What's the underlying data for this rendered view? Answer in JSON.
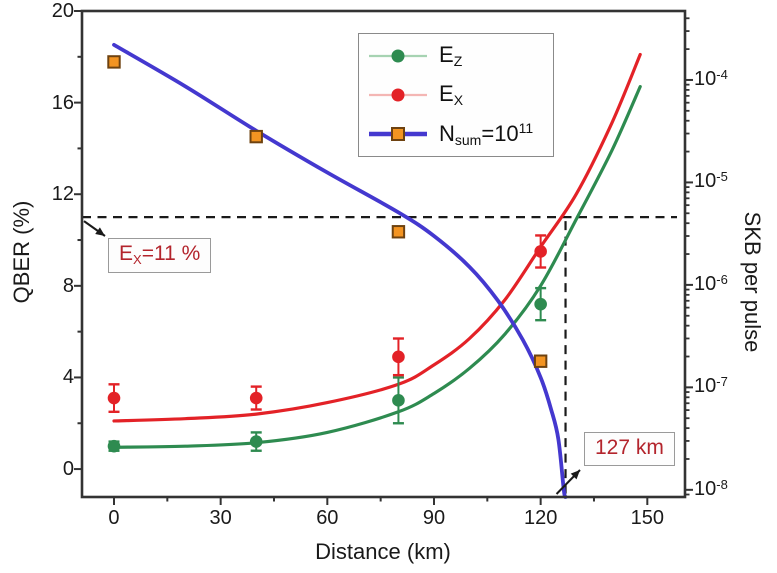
{
  "chart_data": {
    "type": "line+scatter (dual axis)",
    "title": "",
    "xlabel": "Distance (km)",
    "ylabel_left": "QBER (%)",
    "ylabel_right": "SKB per pulse",
    "xlim": [
      -9.0,
      160.6
    ],
    "ylim_left": [
      -1.22,
      20
    ],
    "ylim_right_log10": [
      -8.07,
      -3.327
    ],
    "x_ticks": [
      0,
      30,
      60,
      90,
      120,
      150
    ],
    "x_minor_ticks": [
      15,
      45,
      75,
      105,
      135
    ],
    "y_left_ticks": [
      0,
      4,
      8,
      12,
      16,
      20
    ],
    "y_left_minor_ticks": [
      2,
      6,
      10,
      14,
      18
    ],
    "y_right_ticks": [
      {
        "base": "10",
        "exp": "-4",
        "logv": -4
      },
      {
        "base": "10",
        "exp": "-5",
        "logv": -5
      },
      {
        "base": "10",
        "exp": "-6",
        "logv": -6
      },
      {
        "base": "10",
        "exp": "-7",
        "logv": -7
      },
      {
        "base": "10",
        "exp": "-8",
        "logv": -8
      }
    ],
    "grid": false,
    "legend_position": "upper center-right inside",
    "series": [
      {
        "name": "E_Z",
        "axis": "left",
        "marker": "circle",
        "color": "#2e8b50",
        "points": {
          "x": [
            0,
            40,
            80,
            120
          ],
          "y": [
            1.0,
            1.2,
            3.0,
            7.2
          ],
          "yerr": [
            0.2,
            0.4,
            1.0,
            0.7
          ]
        },
        "curve": {
          "x": [
            0,
            20,
            40,
            60,
            80,
            90,
            100,
            110,
            120,
            130,
            140,
            148
          ],
          "y": [
            0.95,
            1.0,
            1.15,
            1.6,
            2.5,
            3.3,
            4.4,
            5.9,
            8.0,
            10.9,
            13.9,
            16.7
          ]
        }
      },
      {
        "name": "E_X",
        "axis": "left",
        "marker": "circle",
        "color": "#e32227",
        "points": {
          "x": [
            0,
            40,
            80,
            120
          ],
          "y": [
            3.1,
            3.1,
            4.9,
            9.5
          ],
          "yerr": [
            0.6,
            0.5,
            0.8,
            0.7
          ]
        },
        "curve": {
          "x": [
            0,
            20,
            40,
            60,
            80,
            90,
            100,
            110,
            120,
            130,
            140,
            148
          ],
          "y": [
            2.1,
            2.2,
            2.4,
            2.9,
            3.7,
            4.55,
            5.7,
            7.4,
            9.7,
            12.0,
            15.1,
            18.1
          ]
        }
      },
      {
        "name": "N_sum=10^11",
        "axis": "right",
        "marker": "square",
        "color": "#4438cf",
        "marker_fill": "#f39422",
        "marker_edge": "#6e4210",
        "points": {
          "x": [
            0,
            40,
            80,
            120
          ],
          "y": [
            0.00015,
            2.8e-05,
            3.3e-06,
            1.8e-07
          ]
        },
        "curve": {
          "x": [
            0,
            20,
            40,
            60,
            80,
            90,
            100,
            108,
            115,
            120,
            123,
            125,
            126.5,
            127
          ],
          "y": [
            0.00022,
            8.7e-05,
            3.2e-05,
            1.25e-05,
            5.1e-06,
            3e-06,
            1.5e-06,
            7e-07,
            2.9e-07,
            1.25e-07,
            6e-08,
            3.1e-08,
            1e-08,
            7e-09
          ]
        }
      }
    ],
    "legend": {
      "items": [
        {
          "main": "E",
          "sub": "Z"
        },
        {
          "main": "E",
          "sub": "X"
        },
        {
          "main": "N",
          "sub": "sum",
          "mid": "=10",
          "sup": "11"
        }
      ]
    },
    "annotations": {
      "threshold_line": {
        "qber": 11,
        "style": "dashed"
      },
      "distance_line": {
        "km": 127,
        "style": "dashed"
      },
      "ex_label": {
        "main": "E",
        "sub": "X",
        "rest": "=11 %"
      },
      "km_label": {
        "text": "127 km"
      }
    },
    "colors": {
      "ez": "#2e8b50",
      "ex": "#e32227",
      "nsum": "#4438cf",
      "square_fill": "#f39422",
      "square_edge": "#6e4210",
      "ez_line_light": "#a6d3b2",
      "ex_line_light": "#f4b6b4",
      "annotation_text": "#b3242c",
      "dash": "#1a1a1a",
      "frame": "#333333",
      "box_border": "#9a9a9a"
    }
  }
}
